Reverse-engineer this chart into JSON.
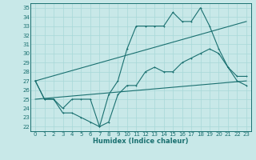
{
  "bg_color": "#c8e8e8",
  "line_color": "#1a7070",
  "grid_color": "#a8d8d8",
  "xlabel": "Humidex (Indice chaleur)",
  "xlim": [
    -0.5,
    23.5
  ],
  "ylim": [
    21.5,
    35.5
  ],
  "yticks": [
    22,
    23,
    24,
    25,
    26,
    27,
    28,
    29,
    30,
    31,
    32,
    33,
    34,
    35
  ],
  "xticks": [
    0,
    1,
    2,
    3,
    4,
    5,
    6,
    7,
    8,
    9,
    10,
    11,
    12,
    13,
    14,
    15,
    16,
    17,
    18,
    19,
    20,
    21,
    22,
    23
  ],
  "line1_x": [
    0,
    1,
    2,
    3,
    4,
    5,
    6,
    7,
    8,
    9,
    10,
    11,
    12,
    13,
    14,
    15,
    16,
    17,
    18,
    19,
    20,
    21,
    22,
    23
  ],
  "line1_y": [
    27,
    25,
    25,
    24,
    25,
    25,
    25,
    22,
    22.5,
    25.5,
    26.5,
    26.5,
    28,
    28.5,
    28,
    28,
    29,
    29.5,
    30,
    30.5,
    30,
    28.5,
    27,
    26.5
  ],
  "line2_x": [
    0,
    1,
    2,
    3,
    4,
    5,
    6,
    7,
    8,
    9,
    10,
    11,
    12,
    13,
    14,
    15,
    16,
    17,
    18,
    19,
    20,
    21,
    22,
    23
  ],
  "line2_y": [
    27,
    25,
    25,
    23.5,
    23.5,
    23,
    22.5,
    22,
    25.5,
    27,
    30.5,
    33,
    33,
    33,
    33,
    34.5,
    33.5,
    33.5,
    35,
    33,
    30.5,
    28.5,
    27.5,
    27.5
  ],
  "line3_x": [
    0,
    23
  ],
  "line3_y": [
    25.0,
    27.0
  ],
  "line4_x": [
    0,
    23
  ],
  "line4_y": [
    27.0,
    33.5
  ]
}
